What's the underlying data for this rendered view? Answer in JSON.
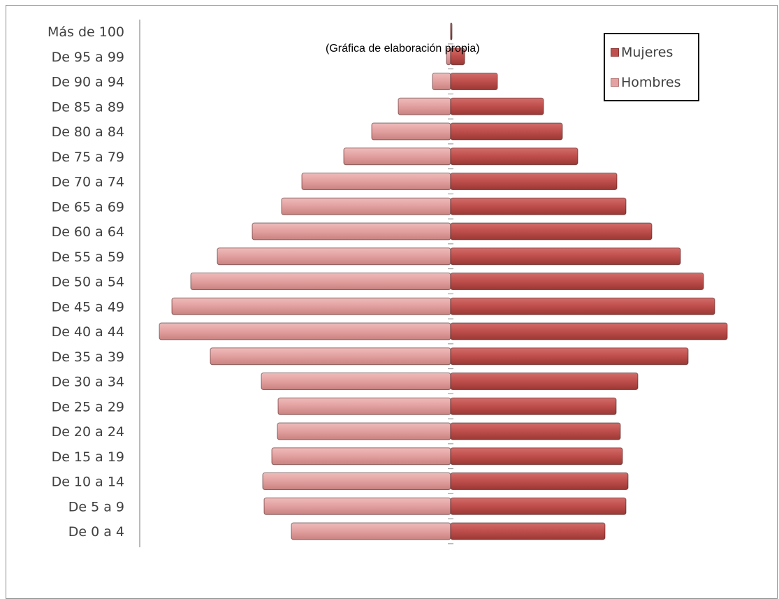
{
  "chart_data": {
    "type": "bar",
    "orientation": "horizontal",
    "subtype": "population-pyramid",
    "title": "",
    "note": "(Gráfica de elaboración propia)",
    "categories": [
      "Más de 100",
      "De 95 a 99",
      "De 90 a 94",
      "De 85 a 89",
      "De 80 a 84",
      "De 75 a 79",
      "De 70 a 74",
      "De 65 a 69",
      "De 60 a 64",
      "De 55 a 59",
      "De 50 a 54",
      "De 45 a 49",
      "De 40 a 44",
      "De 35 a 39",
      "De 30 a 34",
      "De 25 a 29",
      "De 20 a 24",
      "De 15 a 19",
      "De 10 a 14",
      "De 5 a 9",
      "De 0 a 4"
    ],
    "series": [
      {
        "name": "Mujeres",
        "color": "#c0504d",
        "values": [
          2,
          20,
          67,
          133,
          160,
          182,
          238,
          251,
          288,
          329,
          362,
          378,
          396,
          340,
          268,
          237,
          243,
          246,
          254,
          251,
          221
        ]
      },
      {
        "name": "Hombres",
        "color": "#e3a2a1",
        "values": [
          0,
          6,
          26,
          75,
          113,
          153,
          213,
          242,
          284,
          334,
          372,
          399,
          417,
          344,
          271,
          247,
          248,
          256,
          269,
          267,
          228
        ]
      }
    ],
    "axis_labels_visible": false,
    "grid": false,
    "legend": "top-right"
  }
}
